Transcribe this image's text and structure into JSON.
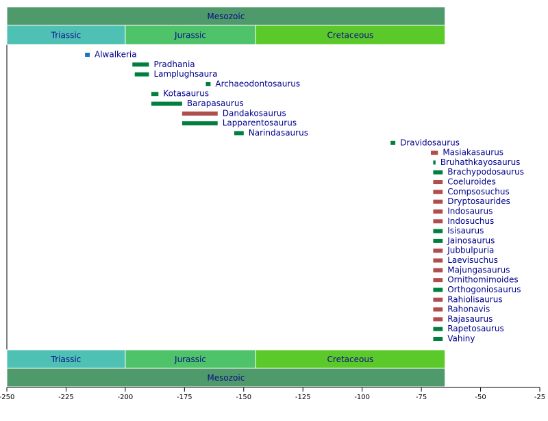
{
  "chart_data": {
    "type": "timeline",
    "xlim": [
      -250,
      -25
    ],
    "xticks": [
      -250,
      -225,
      -200,
      -175,
      -150,
      -125,
      -100,
      -75,
      -50,
      -25
    ],
    "eras": [
      {
        "name": "Mesozoic",
        "start": -250,
        "end": -65,
        "color": "#4f9a6a"
      }
    ],
    "periods": [
      {
        "name": "Triassic",
        "start": -250,
        "end": -200,
        "color": "#4fc0b4"
      },
      {
        "name": "Jurassic",
        "start": -200,
        "end": -145,
        "color": "#4ec36a"
      },
      {
        "name": "Cretaceous",
        "start": -145,
        "end": -65,
        "color": "#5cc92a"
      }
    ],
    "taxa": [
      {
        "name": "Alwalkeria",
        "start": -217,
        "end": -215,
        "color": "#1e73be"
      },
      {
        "name": "Pradhania",
        "start": -197,
        "end": -190,
        "color": "#007f3f"
      },
      {
        "name": "Lamplughsaura",
        "start": -196,
        "end": -190,
        "color": "#007f3f"
      },
      {
        "name": "Archaeodontosaurus",
        "start": -166,
        "end": -164,
        "color": "#007f3f"
      },
      {
        "name": "Kotasaurus",
        "start": -189,
        "end": -186,
        "color": "#007f3f"
      },
      {
        "name": "Barapasaurus",
        "start": -189,
        "end": -176,
        "color": "#007f3f"
      },
      {
        "name": "Dandakosaurus",
        "start": -176,
        "end": -161,
        "color": "#b04d4d"
      },
      {
        "name": "Lapparentosaurus",
        "start": -176,
        "end": -161,
        "color": "#007f3f"
      },
      {
        "name": "Narindasaurus",
        "start": -154,
        "end": -150,
        "color": "#007f3f"
      },
      {
        "name": "Dravidosaurus",
        "start": -88,
        "end": -86,
        "color": "#007f3f"
      },
      {
        "name": "Masiakasaurus",
        "start": -71,
        "end": -68,
        "color": "#b04d4d"
      },
      {
        "name": "Bruhathkayosaurus",
        "start": -70,
        "end": -69,
        "color": "#007f3f"
      },
      {
        "name": "Brachypodosaurus",
        "start": -70,
        "end": -66,
        "color": "#007f3f"
      },
      {
        "name": "Coeluroides",
        "start": -70,
        "end": -66,
        "color": "#b04d4d"
      },
      {
        "name": "Compsosuchus",
        "start": -70,
        "end": -66,
        "color": "#b04d4d"
      },
      {
        "name": "Dryptosaurides",
        "start": -70,
        "end": -66,
        "color": "#b04d4d"
      },
      {
        "name": "Indosaurus",
        "start": -70,
        "end": -66,
        "color": "#b04d4d"
      },
      {
        "name": "Indosuchus",
        "start": -70,
        "end": -66,
        "color": "#b04d4d"
      },
      {
        "name": "Isisaurus",
        "start": -70,
        "end": -66,
        "color": "#007f3f"
      },
      {
        "name": "Jainosaurus",
        "start": -70,
        "end": -66,
        "color": "#007f3f"
      },
      {
        "name": "Jubbulpuria",
        "start": -70,
        "end": -66,
        "color": "#b04d4d"
      },
      {
        "name": "Laevisuchus",
        "start": -70,
        "end": -66,
        "color": "#b04d4d"
      },
      {
        "name": "Majungasaurus",
        "start": -70,
        "end": -66,
        "color": "#b04d4d"
      },
      {
        "name": "Ornithomimoides",
        "start": -70,
        "end": -66,
        "color": "#b04d4d"
      },
      {
        "name": "Orthogoniosaurus",
        "start": -70,
        "end": -66,
        "color": "#007f3f"
      },
      {
        "name": "Rahiolisaurus",
        "start": -70,
        "end": -66,
        "color": "#b04d4d"
      },
      {
        "name": "Rahonavis",
        "start": -70,
        "end": -66,
        "color": "#b04d4d"
      },
      {
        "name": "Rajasaurus",
        "start": -70,
        "end": -66,
        "color": "#b04d4d"
      },
      {
        "name": "Rapetosaurus",
        "start": -70,
        "end": -66,
        "color": "#007f3f"
      },
      {
        "name": "Vahiny",
        "start": -70,
        "end": -66,
        "color": "#007f3f"
      }
    ]
  }
}
